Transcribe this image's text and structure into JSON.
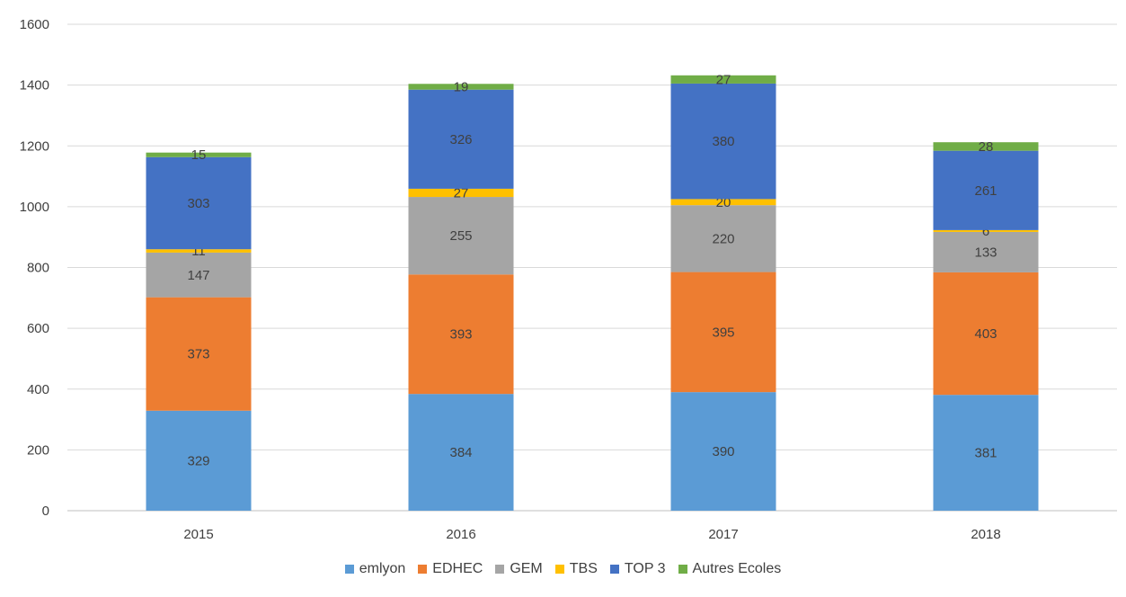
{
  "chart_data": {
    "type": "bar",
    "stacked": true,
    "categories": [
      "2015",
      "2016",
      "2017",
      "2018"
    ],
    "series": [
      {
        "name": "emlyon",
        "color": "#5B9BD5",
        "values": [
          329,
          384,
          390,
          381
        ]
      },
      {
        "name": "EDHEC",
        "color": "#ED7D31",
        "values": [
          373,
          393,
          395,
          403
        ]
      },
      {
        "name": "GEM",
        "color": "#A5A5A5",
        "values": [
          147,
          255,
          220,
          133
        ]
      },
      {
        "name": "TBS",
        "color": "#FFC000",
        "values": [
          11,
          27,
          20,
          6
        ]
      },
      {
        "name": "TOP 3",
        "color": "#4472C4",
        "values": [
          303,
          326,
          380,
          261
        ]
      },
      {
        "name": "Autres Ecoles",
        "color": "#70AD47",
        "values": [
          15,
          19,
          27,
          28
        ]
      }
    ],
    "ylim": [
      0,
      1600
    ],
    "yticks": [
      0,
      200,
      400,
      600,
      800,
      1000,
      1200,
      1400,
      1600
    ],
    "grid": true,
    "legend_position": "bottom"
  }
}
